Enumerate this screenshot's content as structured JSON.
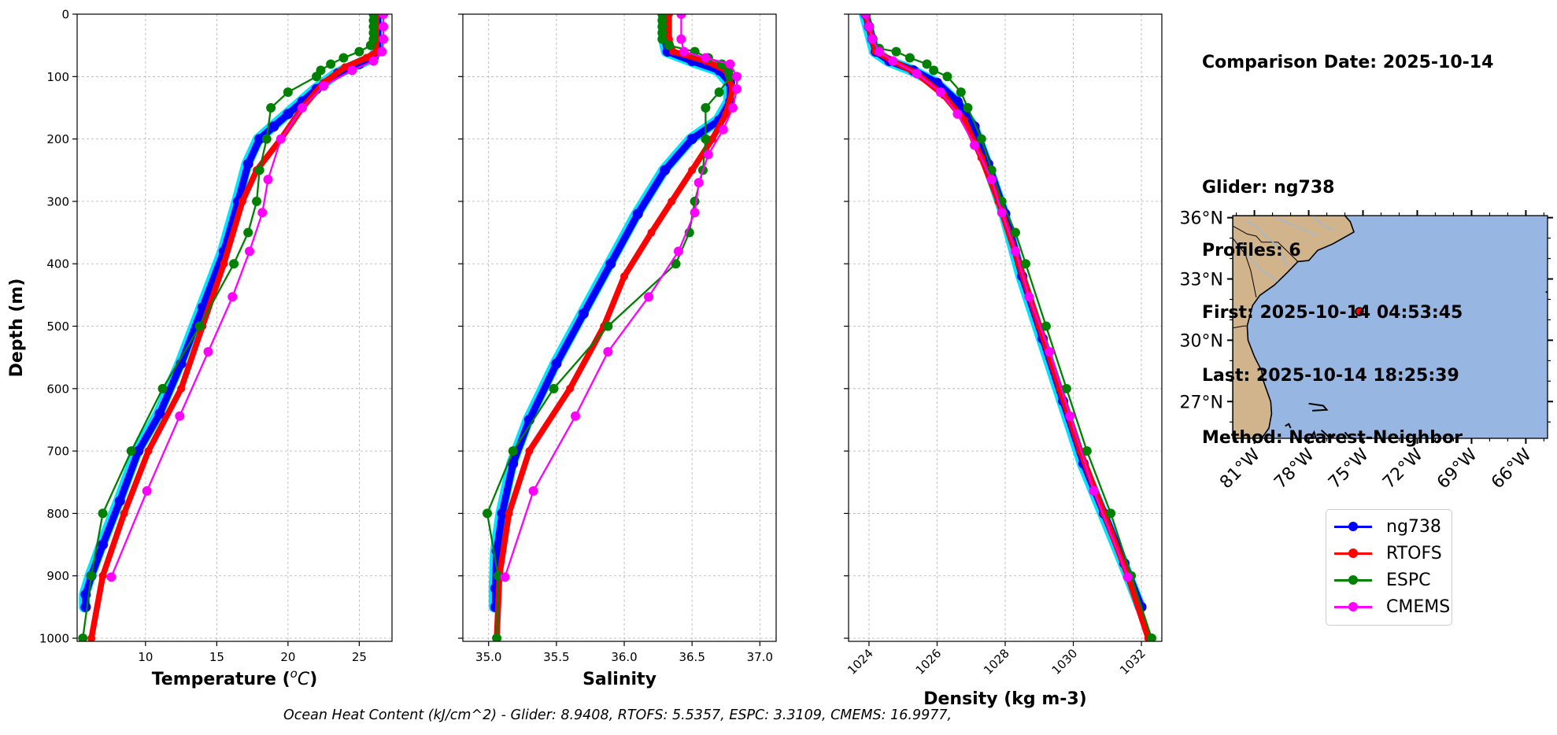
{
  "info": {
    "lines": [
      "Comparison Date: 2025-10-14",
      "",
      "Glider: ng738",
      "Profiles: 6",
      "First: 2025-10-14 04:53:45",
      "Last: 2025-10-14 18:25:39",
      "Method: Nearest-Neighbor"
    ]
  },
  "footer": "Ocean Heat Content (kJ/cm^2) - Glider: 8.9408,  RTOFS: 5.5357,  ESPC: 3.3109,  CMEMS: 16.9977,",
  "legend": [
    {
      "name": "ng738",
      "color": "#0000ff"
    },
    {
      "name": "RTOFS",
      "color": "#ff0000"
    },
    {
      "name": "ESPC",
      "color": "#008000"
    },
    {
      "name": "CMEMS",
      "color": "#ff00ff"
    }
  ],
  "map": {
    "lat_ticks": [
      "36°N",
      "33°N",
      "30°N",
      "27°N"
    ],
    "lon_ticks": [
      "81°W",
      "78°W",
      "75°W",
      "72°W",
      "69°W",
      "66°W"
    ],
    "lon_range": [
      -82.2,
      -64.8
    ],
    "lat_range": [
      25.2,
      36.1
    ],
    "glider_position": {
      "lon": -75.2,
      "lat": 31.4
    },
    "land_color": "#d2b48c",
    "ocean_color": "#98b6e2"
  },
  "chart_data": [
    {
      "type": "line",
      "xlabel": "Temperature (°C)",
      "ylabel": "Depth (m)",
      "xlim": [
        5.2,
        27.3
      ],
      "ylim": [
        1005,
        0
      ],
      "xticks": [
        10,
        15,
        20,
        25
      ],
      "yticks": [
        0,
        100,
        200,
        300,
        400,
        500,
        600,
        700,
        800,
        900,
        1000
      ],
      "grid": true,
      "series": [
        {
          "name": "ng738",
          "color": "#0000ff",
          "points": [
            [
              26.3,
              0
            ],
            [
              26.3,
              20
            ],
            [
              26.3,
              40
            ],
            [
              26.3,
              60
            ],
            [
              26.0,
              70
            ],
            [
              25.0,
              80
            ],
            [
              23.5,
              95
            ],
            [
              22.0,
              120
            ],
            [
              21.0,
              140
            ],
            [
              20.0,
              160
            ],
            [
              19.0,
              180
            ],
            [
              18.0,
              200
            ],
            [
              17.2,
              240
            ],
            [
              16.5,
              300
            ],
            [
              15.5,
              380
            ],
            [
              14.0,
              470
            ],
            [
              12.5,
              560
            ],
            [
              11.0,
              640
            ],
            [
              9.5,
              700
            ],
            [
              8.2,
              780
            ],
            [
              7.0,
              850
            ],
            [
              6.2,
              900
            ],
            [
              5.8,
              930
            ],
            [
              5.8,
              950
            ]
          ]
        },
        {
          "name": "RTOFS",
          "color": "#ff0000",
          "points": [
            [
              26.2,
              0
            ],
            [
              26.2,
              40
            ],
            [
              26.2,
              60
            ],
            [
              25.5,
              70
            ],
            [
              24.0,
              85
            ],
            [
              22.5,
              110
            ],
            [
              21.0,
              150
            ],
            [
              19.5,
              200
            ],
            [
              17.8,
              250
            ],
            [
              16.8,
              300
            ],
            [
              15.5,
              400
            ],
            [
              14.0,
              500
            ],
            [
              12.5,
              600
            ],
            [
              10.2,
              700
            ],
            [
              8.5,
              800
            ],
            [
              7.0,
              900
            ],
            [
              6.2,
              1000
            ]
          ]
        },
        {
          "name": "ESPC",
          "color": "#008000",
          "points": [
            [
              26.0,
              0
            ],
            [
              26.0,
              10
            ],
            [
              26.0,
              20
            ],
            [
              26.0,
              30
            ],
            [
              26.0,
              40
            ],
            [
              25.8,
              50
            ],
            [
              25.0,
              60
            ],
            [
              23.9,
              70
            ],
            [
              23.0,
              80
            ],
            [
              22.3,
              90
            ],
            [
              22.0,
              100
            ],
            [
              20.0,
              125
            ],
            [
              18.8,
              150
            ],
            [
              18.5,
              200
            ],
            [
              18.0,
              250
            ],
            [
              17.8,
              300
            ],
            [
              17.2,
              350
            ],
            [
              16.2,
              400
            ],
            [
              13.8,
              500
            ],
            [
              11.2,
              600
            ],
            [
              9.0,
              700
            ],
            [
              7.0,
              800
            ],
            [
              6.2,
              900
            ],
            [
              5.6,
              1000
            ]
          ]
        },
        {
          "name": "CMEMS",
          "color": "#ff00ff",
          "points": [
            [
              26.7,
              0
            ],
            [
              26.7,
              20
            ],
            [
              26.7,
              40
            ],
            [
              26.6,
              60
            ],
            [
              26.0,
              75
            ],
            [
              24.5,
              90
            ],
            [
              22.5,
              115
            ],
            [
              21.0,
              150
            ],
            [
              19.5,
              200
            ],
            [
              18.6,
              265
            ],
            [
              18.2,
              318
            ],
            [
              17.3,
              380
            ],
            [
              16.1,
              453
            ],
            [
              14.4,
              541
            ],
            [
              12.4,
              644
            ],
            [
              10.1,
              764
            ],
            [
              7.6,
              902
            ]
          ]
        }
      ]
    },
    {
      "type": "line",
      "xlabel": "Salinity",
      "xlim": [
        34.81,
        37.12
      ],
      "ylim": [
        1005,
        0
      ],
      "xticks": [
        35.0,
        35.5,
        36.0,
        36.5,
        37.0
      ],
      "yticks": [
        0,
        100,
        200,
        300,
        400,
        500,
        600,
        700,
        800,
        900,
        1000
      ],
      "grid": true,
      "series": [
        {
          "name": "ng738",
          "color": "#0000ff",
          "points": [
            [
              36.3,
              0
            ],
            [
              36.3,
              40
            ],
            [
              36.32,
              60
            ],
            [
              36.5,
              75
            ],
            [
              36.7,
              90
            ],
            [
              36.78,
              110
            ],
            [
              36.78,
              140
            ],
            [
              36.7,
              170
            ],
            [
              36.5,
              200
            ],
            [
              36.3,
              250
            ],
            [
              36.1,
              320
            ],
            [
              35.9,
              400
            ],
            [
              35.7,
              480
            ],
            [
              35.5,
              560
            ],
            [
              35.3,
              650
            ],
            [
              35.18,
              720
            ],
            [
              35.1,
              800
            ],
            [
              35.06,
              860
            ],
            [
              35.05,
              920
            ],
            [
              35.05,
              950
            ]
          ]
        },
        {
          "name": "RTOFS",
          "color": "#ff0000",
          "points": [
            [
              36.33,
              0
            ],
            [
              36.33,
              40
            ],
            [
              36.36,
              60
            ],
            [
              36.6,
              75
            ],
            [
              36.75,
              90
            ],
            [
              36.8,
              120
            ],
            [
              36.75,
              160
            ],
            [
              36.65,
              200
            ],
            [
              36.5,
              250
            ],
            [
              36.35,
              300
            ],
            [
              36.2,
              350
            ],
            [
              36.0,
              420
            ],
            [
              35.85,
              500
            ],
            [
              35.6,
              600
            ],
            [
              35.3,
              700
            ],
            [
              35.15,
              800
            ],
            [
              35.08,
              900
            ],
            [
              35.06,
              1000
            ]
          ]
        },
        {
          "name": "ESPC",
          "color": "#008000",
          "points": [
            [
              36.28,
              0
            ],
            [
              36.28,
              10
            ],
            [
              36.28,
              20
            ],
            [
              36.28,
              30
            ],
            [
              36.28,
              40
            ],
            [
              36.33,
              50
            ],
            [
              36.52,
              60
            ],
            [
              36.62,
              70
            ],
            [
              36.72,
              80
            ],
            [
              36.77,
              90
            ],
            [
              36.78,
              100
            ],
            [
              36.7,
              125
            ],
            [
              36.6,
              150
            ],
            [
              36.6,
              200
            ],
            [
              36.58,
              250
            ],
            [
              36.52,
              300
            ],
            [
              36.48,
              350
            ],
            [
              36.38,
              400
            ],
            [
              35.88,
              500
            ],
            [
              35.48,
              600
            ],
            [
              35.18,
              700
            ],
            [
              34.99,
              800
            ],
            [
              35.07,
              900
            ],
            [
              35.06,
              1000
            ]
          ]
        },
        {
          "name": "CMEMS",
          "color": "#ff00ff",
          "points": [
            [
              36.42,
              0
            ],
            [
              36.42,
              40
            ],
            [
              36.44,
              60
            ],
            [
              36.6,
              70
            ],
            [
              36.78,
              80
            ],
            [
              36.83,
              100
            ],
            [
              36.83,
              120
            ],
            [
              36.8,
              150
            ],
            [
              36.73,
              185
            ],
            [
              36.62,
              225
            ],
            [
              36.55,
              270
            ],
            [
              36.52,
              318
            ],
            [
              36.4,
              380
            ],
            [
              36.18,
              453
            ],
            [
              35.88,
              541
            ],
            [
              35.64,
              644
            ],
            [
              35.33,
              764
            ],
            [
              35.12,
              902
            ]
          ]
        }
      ]
    },
    {
      "type": "line",
      "xlabel": "Density (kg m-3)",
      "xlim": [
        1023.4,
        1032.6
      ],
      "ylim": [
        1005,
        0
      ],
      "xticks": [
        1024,
        1026,
        1028,
        1030,
        1032
      ],
      "yticks": [
        0,
        100,
        200,
        300,
        400,
        500,
        600,
        700,
        800,
        900,
        1000
      ],
      "grid": true,
      "series": [
        {
          "name": "ng738",
          "color": "#0000ff",
          "points": [
            [
              1023.9,
              0
            ],
            [
              1024.0,
              20
            ],
            [
              1024.1,
              40
            ],
            [
              1024.2,
              60
            ],
            [
              1024.6,
              75
            ],
            [
              1025.3,
              90
            ],
            [
              1026.0,
              110
            ],
            [
              1026.6,
              140
            ],
            [
              1027.1,
              180
            ],
            [
              1027.5,
              240
            ],
            [
              1028.0,
              320
            ],
            [
              1028.5,
              420
            ],
            [
              1029.1,
              520
            ],
            [
              1029.7,
              620
            ],
            [
              1030.3,
              720
            ],
            [
              1030.9,
              800
            ],
            [
              1031.5,
              880
            ],
            [
              1032.0,
              950
            ]
          ]
        },
        {
          "name": "RTOFS",
          "color": "#ff0000",
          "points": [
            [
              1023.9,
              0
            ],
            [
              1024.0,
              20
            ],
            [
              1024.1,
              40
            ],
            [
              1024.2,
              60
            ],
            [
              1024.7,
              75
            ],
            [
              1025.4,
              95
            ],
            [
              1026.2,
              130
            ],
            [
              1026.8,
              170
            ],
            [
              1027.3,
              230
            ],
            [
              1027.8,
              300
            ],
            [
              1028.4,
              400
            ],
            [
              1029.0,
              500
            ],
            [
              1029.6,
              600
            ],
            [
              1030.2,
              700
            ],
            [
              1030.9,
              800
            ],
            [
              1031.6,
              900
            ],
            [
              1032.2,
              1000
            ]
          ]
        },
        {
          "name": "ESPC",
          "color": "#008000",
          "points": [
            [
              1023.9,
              0
            ],
            [
              1024.0,
              20
            ],
            [
              1024.1,
              40
            ],
            [
              1024.3,
              55
            ],
            [
              1024.8,
              60
            ],
            [
              1025.2,
              70
            ],
            [
              1025.7,
              80
            ],
            [
              1025.9,
              90
            ],
            [
              1026.3,
              100
            ],
            [
              1026.7,
              125
            ],
            [
              1026.9,
              150
            ],
            [
              1027.3,
              200
            ],
            [
              1027.6,
              250
            ],
            [
              1027.9,
              300
            ],
            [
              1028.3,
              350
            ],
            [
              1028.6,
              400
            ],
            [
              1029.2,
              500
            ],
            [
              1029.8,
              600
            ],
            [
              1030.4,
              700
            ],
            [
              1031.1,
              800
            ],
            [
              1031.7,
              900
            ],
            [
              1032.3,
              1000
            ]
          ]
        },
        {
          "name": "CMEMS",
          "color": "#ff00ff",
          "points": [
            [
              1023.9,
              0
            ],
            [
              1024.0,
              20
            ],
            [
              1024.1,
              40
            ],
            [
              1024.3,
              60
            ],
            [
              1024.7,
              75
            ],
            [
              1025.4,
              95
            ],
            [
              1026.1,
              125
            ],
            [
              1026.6,
              160
            ],
            [
              1027.1,
              210
            ],
            [
              1027.6,
              265
            ],
            [
              1027.9,
              318
            ],
            [
              1028.3,
              380
            ],
            [
              1028.7,
              453
            ],
            [
              1029.3,
              541
            ],
            [
              1029.9,
              644
            ],
            [
              1030.6,
              764
            ],
            [
              1031.6,
              902
            ]
          ]
        }
      ]
    }
  ]
}
